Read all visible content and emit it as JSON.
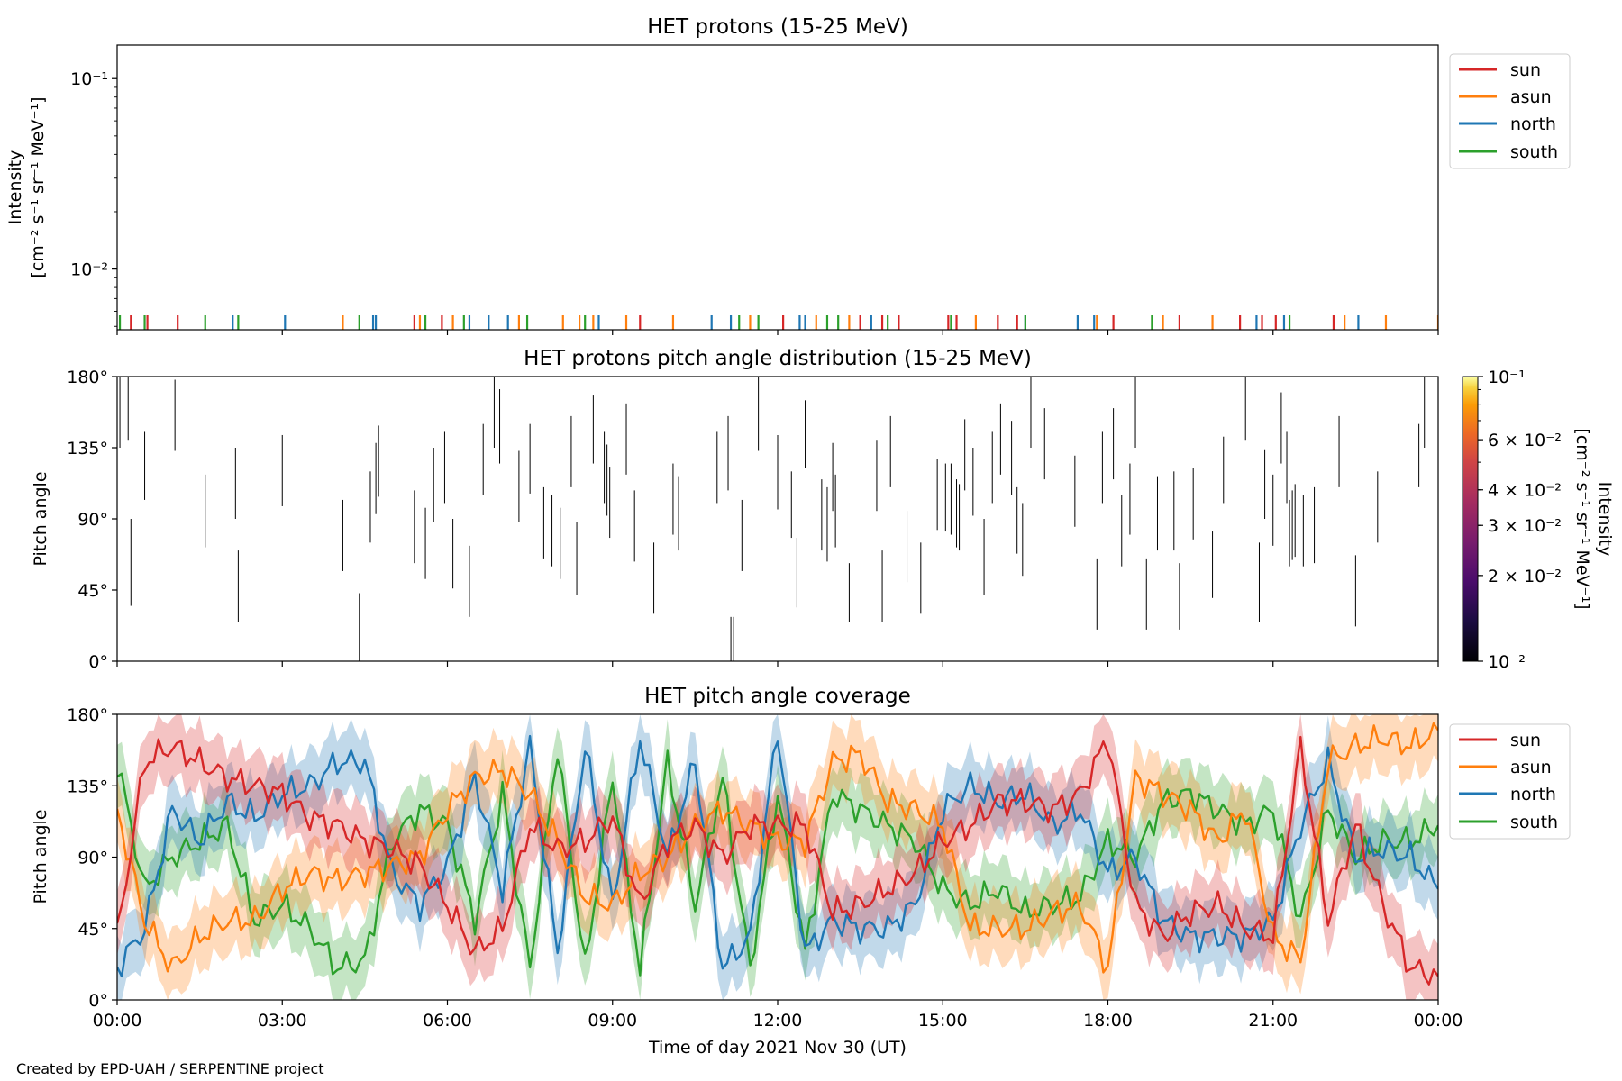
{
  "credit": "Created by EPD-UAH / SERPENTINE project",
  "colors": {
    "sun": "#d62728",
    "asun": "#ff7f0e",
    "north": "#1f77b4",
    "south": "#2ca02c"
  },
  "chart_data": [
    {
      "type": "line",
      "title": "HET protons (15-25 MeV)",
      "ylabel_line1": "Intensity",
      "ylabel_line2": "[cm⁻² s⁻¹ sr⁻¹ MeV⁻¹]",
      "yscale": "log",
      "ylim": [
        0.0048,
        0.15
      ],
      "yticks": [
        {
          "value": 0.1,
          "label": "10⁻¹"
        },
        {
          "value": 0.01,
          "label": "10⁻²"
        }
      ],
      "xlim_hours": [
        0,
        24
      ],
      "legend": {
        "placement": "outside-top-right",
        "entries": [
          "sun",
          "asun",
          "north",
          "south"
        ]
      },
      "note": "only isolated single-count spikes at the bottom of the axis",
      "spikes": [
        {
          "series": "sun",
          "times_hours": [
            0.25,
            0.55,
            1.1,
            5.4,
            5.9,
            9.5,
            12.1,
            13.5,
            13.9,
            14.2,
            15.1,
            15.25,
            16.0,
            16.35,
            18.1,
            19.3,
            20.4,
            20.8,
            21.05,
            22.1
          ]
        },
        {
          "series": "asun",
          "times_hours": [
            4.1,
            5.5,
            6.1,
            7.3,
            8.1,
            8.4,
            8.65,
            9.25,
            10.1,
            11.5,
            12.7,
            13.3,
            15.6,
            17.8,
            19.0,
            19.9,
            22.3,
            24.0,
            23.05
          ]
        },
        {
          "series": "north",
          "times_hours": [
            2.1,
            3.05,
            4.65,
            4.7,
            6.4,
            6.75,
            7.1,
            8.75,
            10.8,
            11.15,
            12.4,
            12.5,
            13.7,
            16.5,
            17.45,
            17.75,
            20.7,
            21.2,
            22.55
          ]
        },
        {
          "series": "south",
          "times_hours": [
            0.05,
            0.5,
            1.6,
            2.2,
            4.4,
            5.6,
            6.3,
            7.45,
            8.5,
            11.3,
            11.65,
            12.9,
            13.1,
            14.0,
            15.15,
            16.5,
            18.8,
            21.3,
            24.35
          ]
        }
      ]
    },
    {
      "type": "heatmap",
      "title": "HET protons pitch angle distribution (15-25 MeV)",
      "ylabel": "Pitch angle",
      "ylim": [
        0,
        180
      ],
      "yticks": [
        "0°",
        "45°",
        "90°",
        "135°",
        "180°"
      ],
      "xlim_hours": [
        0,
        24
      ],
      "colorbar": {
        "label_line1": "Intensity",
        "label_line2": "[cm⁻² s⁻¹ sr⁻¹ MeV⁻¹]",
        "scale": "log",
        "range": [
          0.01,
          0.1
        ],
        "colormap": "inferno",
        "ticks": [
          {
            "value": 0.1,
            "label": "10⁻¹"
          },
          {
            "value": 0.06,
            "label": "6 × 10⁻²"
          },
          {
            "value": 0.04,
            "label": "4 × 10⁻²"
          },
          {
            "value": 0.03,
            "label": "3 × 10⁻²"
          },
          {
            "value": 0.02,
            "label": "2 × 10⁻²"
          },
          {
            "value": 0.01,
            "label": "10⁻²"
          }
        ]
      },
      "segments": [
        [
          0.05,
          135,
          180
        ],
        [
          0.2,
          140,
          180
        ],
        [
          0.25,
          35,
          90
        ],
        [
          0.5,
          102,
          145
        ],
        [
          1.05,
          133,
          178
        ],
        [
          1.6,
          72,
          118
        ],
        [
          2.15,
          90,
          135
        ],
        [
          2.2,
          25,
          70
        ],
        [
          3.0,
          98,
          143
        ],
        [
          4.1,
          57,
          102
        ],
        [
          4.4,
          0,
          43
        ],
        [
          4.6,
          75,
          120
        ],
        [
          4.7,
          93,
          138
        ],
        [
          4.75,
          104,
          149
        ],
        [
          5.4,
          62,
          108
        ],
        [
          5.6,
          52,
          97
        ],
        [
          5.75,
          88,
          135
        ],
        [
          5.95,
          100,
          145
        ],
        [
          6.1,
          46,
          90
        ],
        [
          6.4,
          28,
          73
        ],
        [
          6.65,
          105,
          150
        ],
        [
          6.85,
          135,
          180
        ],
        [
          6.95,
          125,
          172
        ],
        [
          7.3,
          88,
          133
        ],
        [
          7.5,
          106,
          150
        ],
        [
          7.75,
          65,
          110
        ],
        [
          7.9,
          60,
          105
        ],
        [
          8.05,
          52,
          97
        ],
        [
          8.25,
          110,
          155
        ],
        [
          8.35,
          42,
          88
        ],
        [
          8.65,
          125,
          168
        ],
        [
          8.85,
          100,
          145
        ],
        [
          8.9,
          92,
          137
        ],
        [
          8.95,
          78,
          123
        ],
        [
          9.25,
          118,
          163
        ],
        [
          9.4,
          63,
          108
        ],
        [
          9.75,
          30,
          75
        ],
        [
          10.1,
          80,
          125
        ],
        [
          10.2,
          70,
          117
        ],
        [
          10.9,
          100,
          145
        ],
        [
          11.1,
          108,
          155
        ],
        [
          11.15,
          0,
          28
        ],
        [
          11.2,
          0,
          28
        ],
        [
          11.35,
          57,
          102
        ],
        [
          11.65,
          133,
          180
        ],
        [
          12.0,
          96,
          143
        ],
        [
          12.25,
          78,
          120
        ],
        [
          12.35,
          34,
          78
        ],
        [
          12.5,
          122,
          165
        ],
        [
          12.8,
          70,
          115
        ],
        [
          12.9,
          63,
          110
        ],
        [
          13.0,
          95,
          138
        ],
        [
          13.05,
          72,
          118
        ],
        [
          13.3,
          25,
          62
        ],
        [
          13.8,
          95,
          140
        ],
        [
          13.9,
          25,
          70
        ],
        [
          14.05,
          110,
          155
        ],
        [
          14.35,
          50,
          95
        ],
        [
          14.6,
          30,
          75
        ],
        [
          14.9,
          83,
          128
        ],
        [
          15.05,
          82,
          125
        ],
        [
          15.15,
          80,
          125
        ],
        [
          15.25,
          72,
          115
        ],
        [
          15.3,
          70,
          112
        ],
        [
          15.4,
          108,
          153
        ],
        [
          15.55,
          92,
          135
        ],
        [
          15.75,
          42,
          90
        ],
        [
          15.9,
          100,
          145
        ],
        [
          16.05,
          118,
          163
        ],
        [
          16.25,
          105,
          152
        ],
        [
          16.35,
          68,
          110
        ],
        [
          16.45,
          54,
          100
        ],
        [
          16.6,
          135,
          180
        ],
        [
          16.85,
          115,
          160
        ],
        [
          17.4,
          85,
          130
        ],
        [
          17.8,
          20,
          65
        ],
        [
          17.9,
          100,
          145
        ],
        [
          18.1,
          115,
          160
        ],
        [
          18.25,
          60,
          105
        ],
        [
          18.4,
          80,
          125
        ],
        [
          18.5,
          135,
          180
        ],
        [
          18.7,
          20,
          65
        ],
        [
          18.9,
          70,
          117
        ],
        [
          19.2,
          70,
          120
        ],
        [
          19.3,
          20,
          62
        ],
        [
          19.55,
          77,
          122
        ],
        [
          19.9,
          40,
          82
        ],
        [
          20.1,
          100,
          142
        ],
        [
          20.5,
          140,
          180
        ],
        [
          20.75,
          25,
          75
        ],
        [
          20.85,
          90,
          134
        ],
        [
          21.0,
          73,
          118
        ],
        [
          21.15,
          125,
          170
        ],
        [
          21.25,
          100,
          145
        ],
        [
          21.3,
          60,
          102
        ],
        [
          21.35,
          64,
          108
        ],
        [
          21.4,
          66,
          112
        ],
        [
          21.55,
          60,
          105
        ],
        [
          21.75,
          62,
          110
        ],
        [
          22.2,
          110,
          155
        ],
        [
          22.5,
          22,
          67
        ],
        [
          22.9,
          75,
          120
        ],
        [
          23.65,
          110,
          150
        ],
        [
          23.75,
          135,
          180
        ],
        [
          24.1,
          105,
          150
        ]
      ]
    },
    {
      "type": "area",
      "title": "HET pitch angle coverage",
      "ylabel": "Pitch angle",
      "xlabel": "Time of day 2021 Nov 30 (UT)",
      "ylim": [
        0,
        180
      ],
      "yticks": [
        "0°",
        "45°",
        "90°",
        "135°",
        "180°"
      ],
      "xlim_hours": [
        0,
        24
      ],
      "xticks": [
        "00:00",
        "03:00",
        "06:00",
        "09:00",
        "12:00",
        "15:00",
        "18:00",
        "21:00",
        "00:00"
      ],
      "legend": {
        "placement": "outside-top-right",
        "entries": [
          "sun",
          "asun",
          "north",
          "south"
        ]
      },
      "band_halfwidth_deg": 20,
      "x_hours": [
        0,
        0.5,
        1,
        1.5,
        2,
        2.5,
        3,
        3.5,
        4,
        4.5,
        5,
        5.5,
        6,
        6.5,
        7,
        7.5,
        8,
        8.5,
        9,
        9.5,
        10,
        10.5,
        11,
        11.5,
        12,
        12.5,
        13,
        13.5,
        14,
        14.5,
        15,
        15.5,
        16,
        16.5,
        17,
        17.5,
        18,
        18.5,
        19,
        19.5,
        20,
        20.5,
        21,
        21.5,
        22,
        22.5,
        23,
        23.5,
        24
      ],
      "series": [
        {
          "name": "sun",
          "values": [
            40,
            150,
            160,
            150,
            140,
            135,
            130,
            115,
            110,
            100,
            95,
            85,
            60,
            30,
            45,
            110,
            95,
            100,
            115,
            60,
            100,
            110,
            90,
            110,
            110,
            110,
            55,
            60,
            70,
            80,
            100,
            110,
            125,
            125,
            120,
            130,
            165,
            60,
            40,
            55,
            60,
            45,
            40,
            160,
            50,
            110,
            60,
            20,
            15
          ]
        },
        {
          "name": "asun",
          "values": [
            120,
            50,
            20,
            40,
            50,
            50,
            70,
            80,
            75,
            80,
            85,
            90,
            120,
            140,
            145,
            130,
            100,
            65,
            60,
            80,
            90,
            110,
            120,
            110,
            100,
            100,
            150,
            155,
            125,
            120,
            110,
            45,
            45,
            45,
            55,
            60,
            20,
            140,
            130,
            120,
            100,
            120,
            40,
            25,
            150,
            160,
            165,
            160,
            170
          ]
        },
        {
          "name": "north",
          "values": [
            20,
            45,
            120,
            100,
            125,
            115,
            130,
            135,
            150,
            150,
            80,
            60,
            85,
            140,
            70,
            160,
            30,
            160,
            60,
            165,
            90,
            150,
            20,
            40,
            170,
            30,
            50,
            45,
            45,
            60,
            120,
            135,
            125,
            130,
            110,
            120,
            80,
            90,
            50,
            40,
            40,
            40,
            50,
            110,
            150,
            90,
            95,
            90,
            70
          ]
        },
        {
          "name": "south",
          "values": [
            150,
            70,
            90,
            100,
            110,
            50,
            60,
            45,
            20,
            25,
            100,
            120,
            110,
            50,
            130,
            20,
            160,
            20,
            140,
            20,
            150,
            60,
            140,
            20,
            130,
            30,
            130,
            120,
            110,
            100,
            70,
            60,
            70,
            55,
            60,
            65,
            100,
            90,
            125,
            130,
            120,
            110,
            120,
            50,
            120,
            90,
            100,
            100,
            110
          ]
        }
      ]
    }
  ]
}
